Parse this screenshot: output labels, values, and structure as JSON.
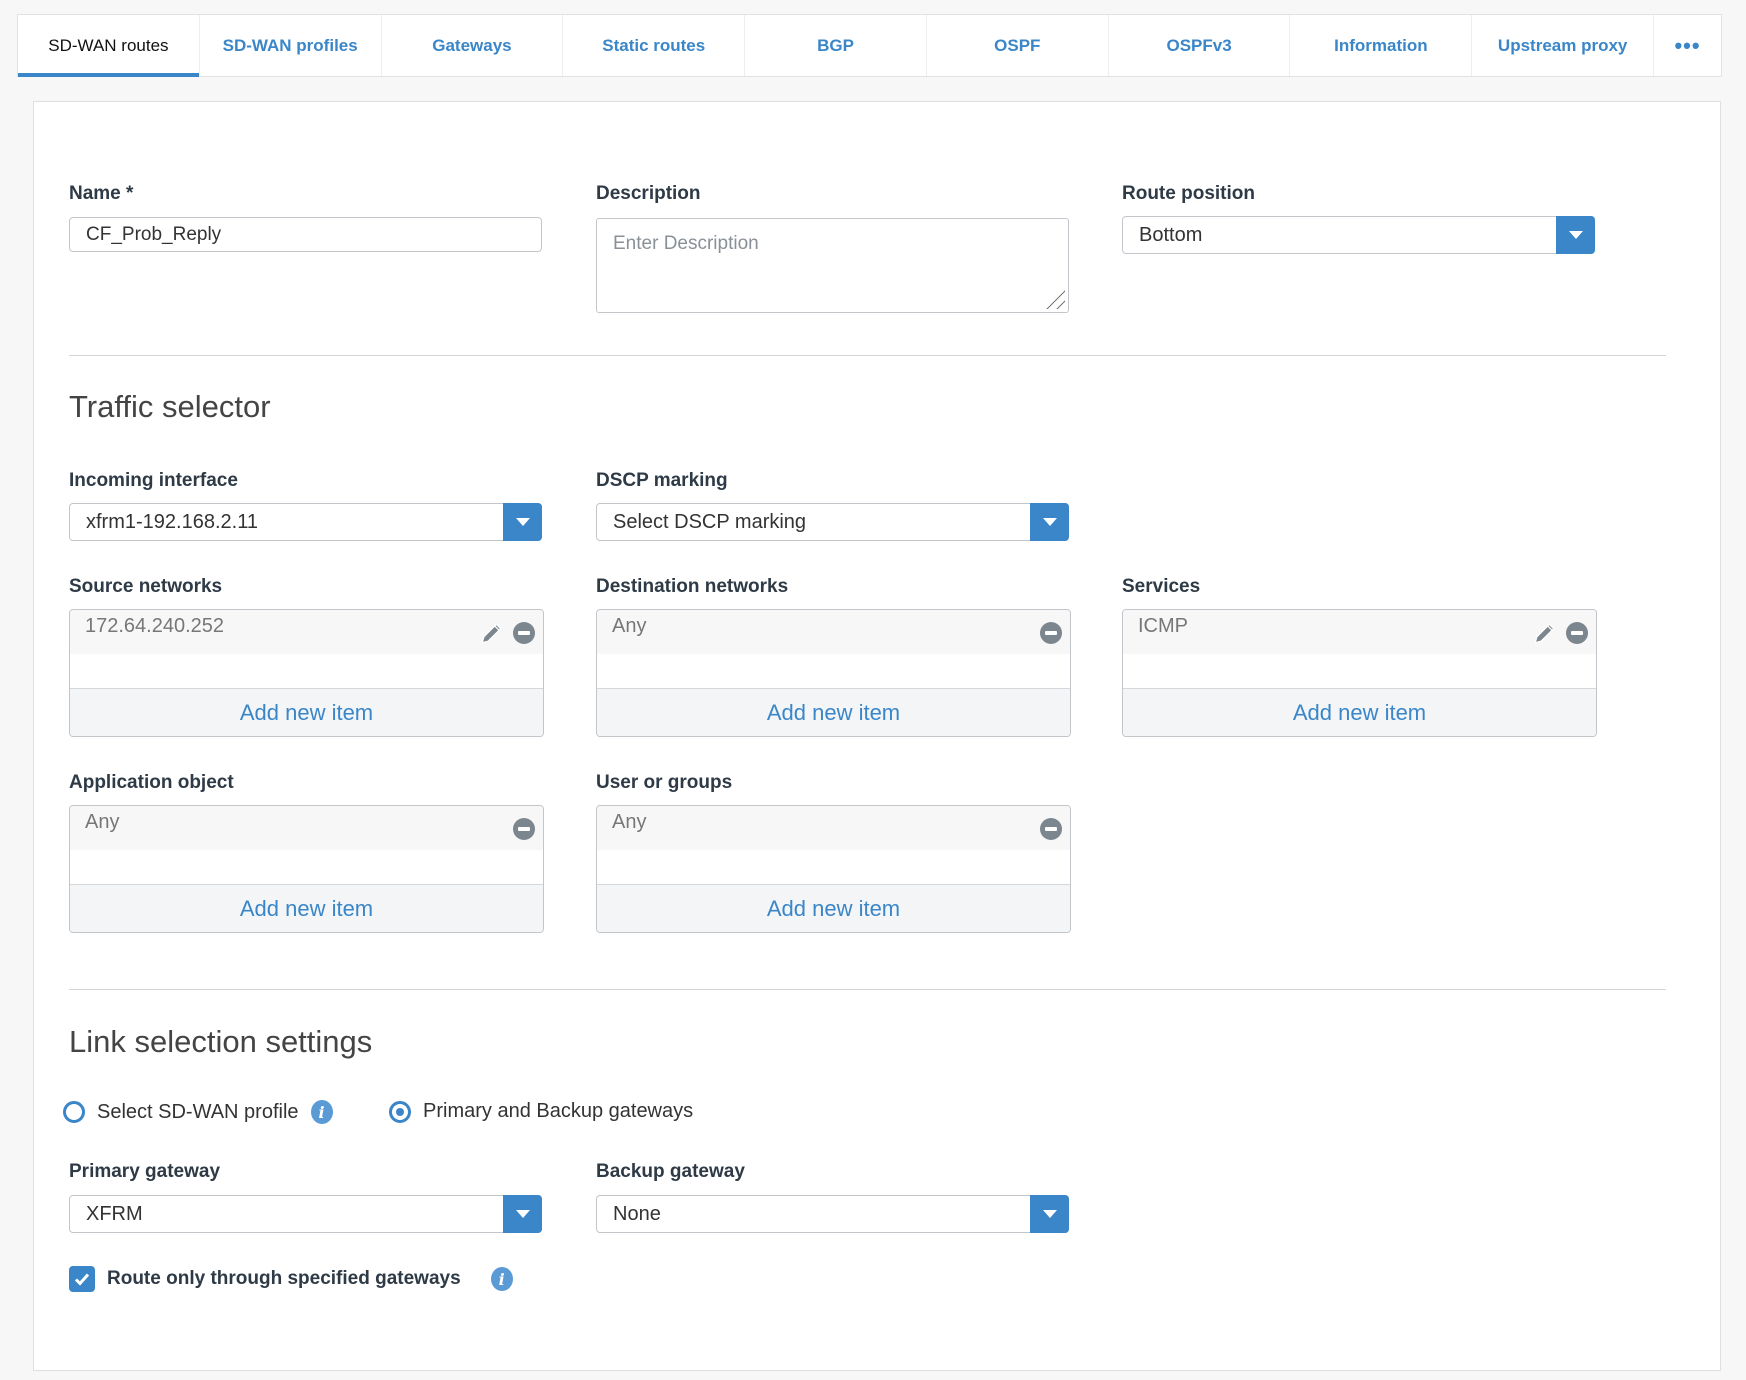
{
  "tabs": [
    {
      "label": "SD-WAN routes",
      "active": true
    },
    {
      "label": "SD-WAN profiles"
    },
    {
      "label": "Gateways"
    },
    {
      "label": "Static routes"
    },
    {
      "label": "BGP"
    },
    {
      "label": "OSPF"
    },
    {
      "label": "OSPFv3"
    },
    {
      "label": "Information"
    },
    {
      "label": "Upstream proxy"
    }
  ],
  "more_icon": "•••",
  "form": {
    "name_label": "Name *",
    "name_value": "CF_Prob_Reply",
    "description_label": "Description",
    "description_placeholder": "Enter Description",
    "route_position_label": "Route position",
    "route_position_value": "Bottom",
    "traffic_selector": {
      "title": "Traffic selector",
      "incoming_label": "Incoming interface",
      "incoming_value": "xfrm1-192.168.2.11",
      "dscp_label": "DSCP marking",
      "dscp_value": "Select DSCP marking",
      "source_label": "Source networks",
      "source_item": "172.64.240.252",
      "destination_label": "Destination networks",
      "destination_item": "Any",
      "services_label": "Services",
      "services_item": "ICMP",
      "application_label": "Application object",
      "application_item": "Any",
      "users_label": "User or groups",
      "users_item": "Any",
      "add_label": "Add new item"
    },
    "link_selection": {
      "title": "Link selection settings",
      "radio_profile": "Select SD-WAN profile",
      "radio_gateways": "Primary and Backup gateways",
      "selected": "Primary and Backup gateways",
      "primary_label": "Primary gateway",
      "primary_value": "XFRM",
      "backup_label": "Backup gateway",
      "backup_value": "None",
      "route_only_label": "Route only through specified gateways",
      "route_only_checked": true,
      "info_icon": "i"
    }
  },
  "colors": {
    "accent": "#3a86c8"
  }
}
